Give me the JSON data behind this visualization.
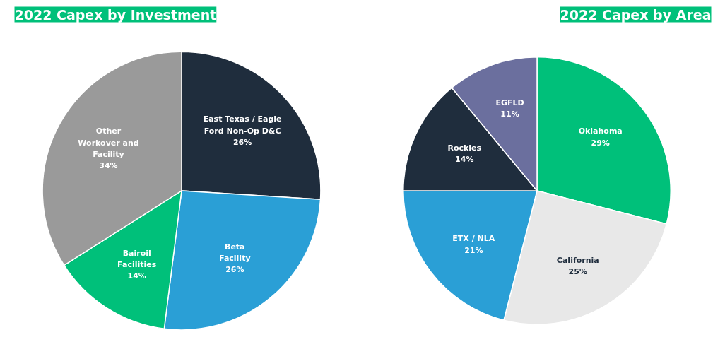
{
  "chart_data": [
    {
      "type": "pie",
      "title": "2022 Capex by Investment",
      "categories": [
        "East Texas / Eagle\nFord Non-Op D&C",
        "Beta\nFacility",
        "Bairoil\nFacilities",
        "Other\nWorkover and\nFacility"
      ],
      "values": [
        26,
        26,
        14,
        34
      ],
      "value_labels": [
        "26%",
        "26%",
        "14%",
        "34%"
      ],
      "colors": [
        "#1f2d3d",
        "#2a9fd6",
        "#00c07a",
        "#9a9a9a"
      ]
    },
    {
      "type": "pie",
      "title": "2022 Capex by Area",
      "categories": [
        "Oklahoma",
        "California",
        "ETX / NLA",
        "Rockies",
        "EGFLD"
      ],
      "values": [
        29,
        25,
        21,
        14,
        11
      ],
      "value_labels": [
        "29%",
        "25%",
        "21%",
        "14%",
        "11%"
      ],
      "colors": [
        "#00c07a",
        "#e8e8e8",
        "#2a9fd6",
        "#1f2d3d",
        "#6b6f9e"
      ]
    }
  ]
}
